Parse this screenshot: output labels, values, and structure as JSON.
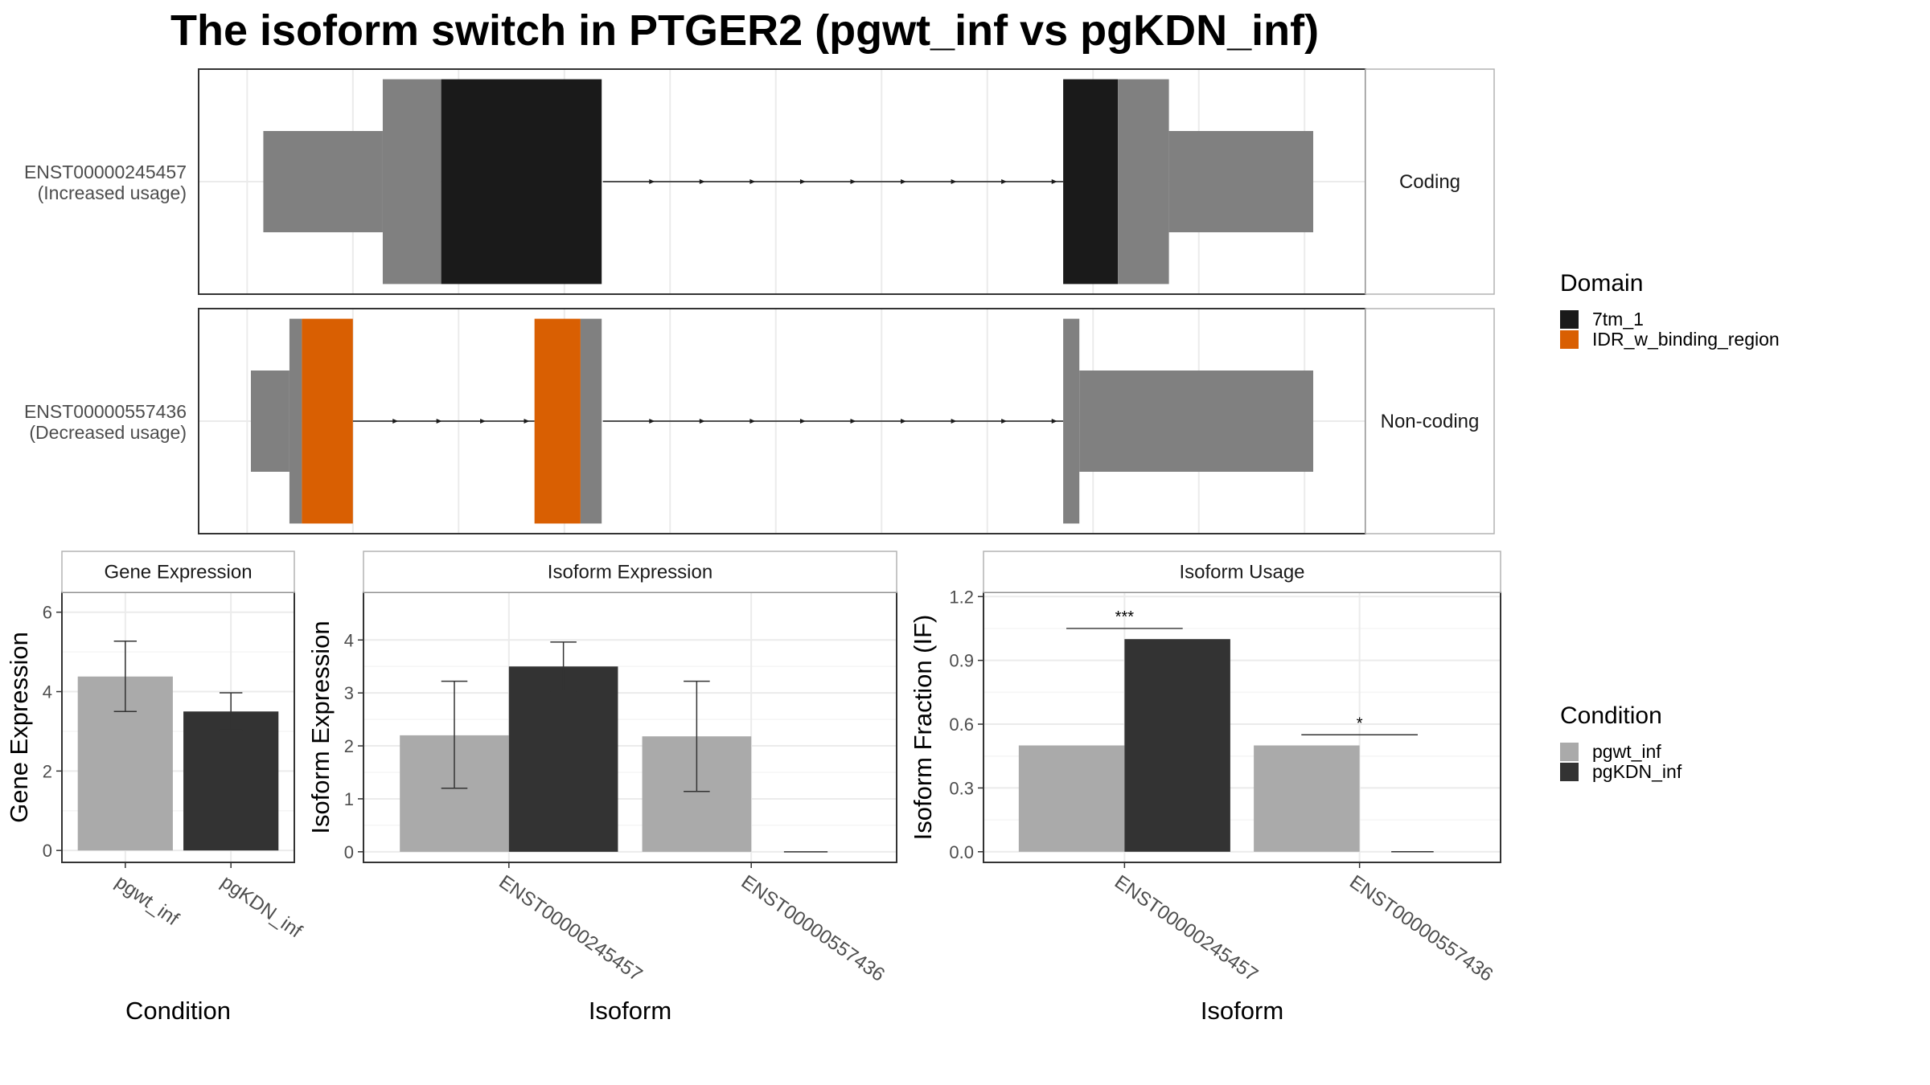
{
  "title": "The isoform switch in PTGER2 (pgwt_inf vs pgKDN_inf)",
  "structure": {
    "isoforms": [
      {
        "id": "ENST00000245457",
        "usage_label": "(Increased usage)",
        "facet_label": "Coding",
        "introns": [
          [
            485,
            855
          ]
        ],
        "blocks": [
          {
            "start": 212,
            "end": 308,
            "height": "utr"
          },
          {
            "start": 308,
            "end": 355,
            "height": "cds"
          },
          {
            "start": 355,
            "end": 484,
            "height": "cds",
            "domain": "7tm_1"
          },
          {
            "start": 855,
            "end": 899,
            "height": "cds",
            "domain": "7tm_1"
          },
          {
            "start": 899,
            "end": 940,
            "height": "cds"
          },
          {
            "start": 940,
            "end": 1056,
            "height": "utr"
          }
        ]
      },
      {
        "id": "ENST00000557436",
        "usage_label": "(Decreased usage)",
        "facet_label": "Non-coding",
        "introns": [
          [
            284,
            430
          ],
          [
            485,
            855
          ]
        ],
        "blocks": [
          {
            "start": 202,
            "end": 233,
            "height": "utr"
          },
          {
            "start": 233,
            "end": 243,
            "height": "cds"
          },
          {
            "start": 243,
            "end": 284,
            "height": "cds",
            "domain": "IDR_w_binding_region"
          },
          {
            "start": 430,
            "end": 467,
            "height": "cds",
            "domain": "IDR_w_binding_region"
          },
          {
            "start": 467,
            "end": 484,
            "height": "cds"
          },
          {
            "start": 855,
            "end": 868,
            "height": "cds"
          },
          {
            "start": 868,
            "end": 1056,
            "height": "utr"
          }
        ]
      }
    ]
  },
  "legends": {
    "domain": {
      "title": "Domain",
      "items": [
        {
          "label": "7tm_1",
          "color": "#1a1a1a"
        },
        {
          "label": "IDR_w_binding_region",
          "color": "#d95f02"
        }
      ]
    },
    "condition": {
      "title": "Condition",
      "items": [
        {
          "label": "pgwt_inf",
          "color": "#aaaaaa"
        },
        {
          "label": "pgKDN_inf",
          "color": "#333333"
        }
      ]
    }
  },
  "colors": {
    "exon": "#808080",
    "intron": "#1a1a1a",
    "panel_border": "#333333",
    "grid": "#ebebeb",
    "strip_fill": "#ffffff"
  },
  "chart_data": [
    {
      "type": "bar",
      "panel_title": "Gene Expression",
      "xlabel": "Condition",
      "ylabel": "Gene Expression",
      "categories": [
        "pgwt_inf",
        "pgKDN_inf"
      ],
      "values": [
        4.38,
        3.5
      ],
      "error_low": [
        3.5,
        3.03
      ],
      "error_high": [
        5.27,
        3.97
      ],
      "ylim": [
        -0.3,
        6.5
      ],
      "yticks": [
        0,
        2,
        4,
        6
      ],
      "ytick_labels": [
        "0",
        "2",
        "4",
        "6"
      ]
    },
    {
      "type": "bar",
      "panel_title": "Isoform Expression",
      "xlabel": "Isoform",
      "ylabel": "Isoform Expression",
      "categories": [
        "ENST00000245457",
        "ENST00000557436"
      ],
      "series": [
        {
          "name": "pgwt_inf",
          "values": [
            2.2,
            2.18
          ],
          "error_low": [
            1.2,
            1.14
          ],
          "error_high": [
            3.22,
            3.22
          ]
        },
        {
          "name": "pgKDN_inf",
          "values": [
            3.5,
            0.0
          ],
          "error_low": [
            3.03,
            0.0
          ],
          "error_high": [
            3.96,
            0.0
          ]
        }
      ],
      "ylim": [
        -0.2,
        4.9
      ],
      "yticks": [
        0,
        1,
        2,
        3,
        4
      ],
      "ytick_labels": [
        "0",
        "1",
        "2",
        "3",
        "4"
      ]
    },
    {
      "type": "bar",
      "panel_title": "Isoform Usage",
      "xlabel": "Isoform",
      "ylabel": "Isoform Fraction (IF)",
      "categories": [
        "ENST00000245457",
        "ENST00000557436"
      ],
      "series": [
        {
          "name": "pgwt_inf",
          "values": [
            0.5,
            0.5
          ]
        },
        {
          "name": "pgKDN_inf",
          "values": [
            1.0,
            0.0
          ]
        }
      ],
      "significance": [
        "***",
        "*"
      ],
      "significance_y": [
        1.05,
        0.55
      ],
      "ylim": [
        -0.05,
        1.22
      ],
      "yticks": [
        0,
        0.3,
        0.6,
        0.9,
        1.2
      ],
      "ytick_labels": [
        "0.0",
        "0.3",
        "0.6",
        "0.9",
        "1.2"
      ]
    }
  ]
}
